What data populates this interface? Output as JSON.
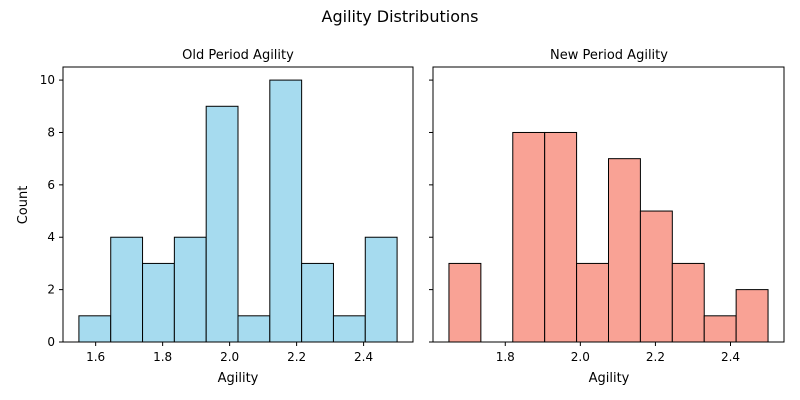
{
  "figure": {
    "suptitle": "Agility Distributions"
  },
  "chart_data": [
    {
      "type": "bar",
      "title": "Old Period Agility",
      "xlabel": "Agility",
      "ylabel": "Count",
      "bin_edges": [
        1.55,
        1.645,
        1.74,
        1.835,
        1.93,
        2.025,
        2.12,
        2.215,
        2.31,
        2.405,
        2.5
      ],
      "values": [
        1,
        4,
        3,
        4,
        9,
        1,
        10,
        3,
        1,
        4
      ],
      "xlim": [
        1.5025,
        2.5475
      ],
      "ylim": [
        0,
        10.5
      ],
      "xticks": [
        1.6,
        1.8,
        2.0,
        2.2,
        2.4
      ],
      "xtick_labels": [
        "1.6",
        "1.8",
        "2.0",
        "2.2",
        "2.4"
      ],
      "yticks": [
        0,
        2,
        4,
        6,
        8,
        10
      ],
      "ytick_labels": [
        "0",
        "2",
        "4",
        "6",
        "8",
        "10"
      ],
      "color": "#a6dbef",
      "edge_color": "#000000",
      "grid": false
    },
    {
      "type": "bar",
      "title": "New Period Agility",
      "xlabel": "Agility",
      "ylabel": "",
      "bin_edges": [
        1.65,
        1.735,
        1.82,
        1.905,
        1.99,
        2.075,
        2.16,
        2.245,
        2.33,
        2.415,
        2.5
      ],
      "values": [
        3,
        0,
        8,
        8,
        3,
        7,
        5,
        3,
        1,
        2
      ],
      "xlim": [
        1.6075,
        2.5425
      ],
      "ylim": [
        0,
        10.5
      ],
      "xticks": [
        1.8,
        2.0,
        2.2,
        2.4
      ],
      "xtick_labels": [
        "1.8",
        "2.0",
        "2.2",
        "2.4"
      ],
      "yticks": [
        0,
        2,
        4,
        6,
        8,
        10
      ],
      "ytick_labels": [],
      "color": "#f9a295",
      "edge_color": "#000000",
      "grid": false
    }
  ]
}
